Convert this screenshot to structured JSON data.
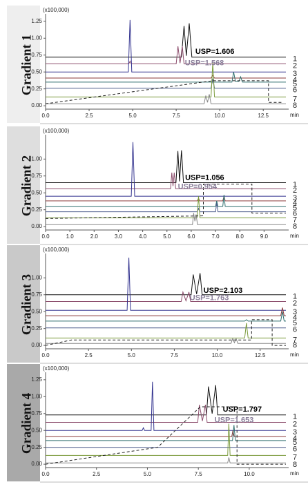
{
  "chart_data": [
    {
      "type": "line",
      "title": "Gradient 1",
      "y_label": "(x100,000)",
      "x_unit": "min",
      "xlim": [
        0,
        13.8
      ],
      "ylim": [
        -0.05,
        1.32
      ],
      "xticks": [
        {
          "value": 0,
          "label": "0.0"
        },
        2.5,
        {
          "value": 5,
          "label": "5.0"
        },
        7.5,
        {
          "value": 10,
          "label": "10.0"
        },
        12.5
      ],
      "yticks": [
        {
          "value": 0,
          "label": "0.00"
        },
        0.25,
        {
          "value": 0.5,
          "label": "0.50"
        },
        0.75,
        {
          "value": 1,
          "label": "1.00"
        },
        1.25
      ],
      "annotations": [
        "USP=1.606",
        "USP=1.568"
      ],
      "series": [
        {
          "name": "1",
          "color": "#111111",
          "x": [
            0,
            7.8,
            7.95,
            8.08,
            8.25,
            8.4,
            13.8
          ],
          "values": [
            0.72,
            0.72,
            1.18,
            0.74,
            1.22,
            0.72,
            0.72
          ]
        },
        {
          "name": "2",
          "color": "#8b4b6b",
          "x": [
            0,
            4.78,
            4.85,
            4.92,
            7.5,
            7.6,
            7.72,
            7.85,
            7.95,
            13.8
          ],
          "values": [
            0.62,
            0.62,
            0.66,
            0.62,
            0.62,
            0.88,
            0.63,
            0.88,
            0.62,
            0.62
          ]
        },
        {
          "name": "3",
          "color": "#33338f",
          "x": [
            0,
            4.75,
            4.85,
            4.95,
            13.8
          ],
          "values": [
            0.5,
            0.5,
            1.27,
            0.5,
            0.5
          ]
        },
        {
          "name": "4",
          "color": "#8b3a3a",
          "x": [
            0,
            9.5,
            9.6,
            9.7,
            13.8
          ],
          "values": [
            0.41,
            0.41,
            0.45,
            0.41,
            0.41
          ]
        },
        {
          "name": "5",
          "color": "#2e6e6e",
          "x": [
            0,
            10.7,
            10.8,
            10.9,
            11.1,
            11.2,
            11.3,
            13.8
          ],
          "values": [
            0.35,
            0.35,
            0.5,
            0.36,
            0.36,
            0.43,
            0.35,
            0.35
          ]
        },
        {
          "name": "6",
          "color": "#4a5a8a",
          "x": [
            0,
            9.5,
            9.6,
            9.7,
            13.8
          ],
          "values": [
            0.26,
            0.26,
            0.4,
            0.26,
            0.26
          ]
        },
        {
          "name": "7",
          "color": "#7a9a3a",
          "x": [
            0,
            9.5,
            9.6,
            9.7,
            13.8
          ],
          "values": [
            0.13,
            0.13,
            0.64,
            0.13,
            0.13
          ]
        },
        {
          "name": "8",
          "color": "#888888",
          "x": [
            0,
            9.1,
            9.2,
            9.3,
            9.4,
            9.5,
            13.8
          ],
          "values": [
            0.03,
            0.03,
            0.15,
            0.05,
            0.17,
            0.03,
            0.03
          ]
        }
      ],
      "gradient_profile": {
        "x": [
          0,
          9.6,
          12.8,
          12.8,
          13.6
        ],
        "values": [
          0.03,
          0.37,
          0.37,
          0.05,
          0.05
        ]
      }
    },
    {
      "type": "line",
      "title": "Gradient 2",
      "y_label": "(x100,000)",
      "x_unit": "min",
      "xlim": [
        0,
        9.9
      ],
      "ylim": [
        -0.05,
        1.32
      ],
      "xticks": [
        {
          "value": 0,
          "label": "0.0"
        },
        {
          "value": 1,
          "label": "1.0"
        },
        {
          "value": 2,
          "label": "2.0"
        },
        {
          "value": 3,
          "label": "3.0"
        },
        {
          "value": 4,
          "label": "4.0"
        },
        {
          "value": 5,
          "label": "5.0"
        },
        {
          "value": 6,
          "label": "6.0"
        },
        {
          "value": 7,
          "label": "7.0"
        },
        {
          "value": 8,
          "label": "8.0"
        },
        {
          "value": 9,
          "label": "9.0"
        }
      ],
      "yticks": [
        {
          "value": 0,
          "label": "0.00"
        },
        0.25,
        {
          "value": 0.5,
          "label": "0.50"
        },
        0.75,
        {
          "value": 1,
          "label": "1.00"
        }
      ],
      "annotations": [
        "USP=1.056",
        "USP=0.954"
      ],
      "series": [
        {
          "name": "1",
          "color": "#111111",
          "x": [
            0,
            5.37,
            5.45,
            5.52,
            5.6,
            5.68,
            9.9
          ],
          "values": [
            0.65,
            0.65,
            1.12,
            0.67,
            1.13,
            0.65,
            0.65
          ]
        },
        {
          "name": "2",
          "color": "#8b4b6b",
          "x": [
            0,
            5.15,
            5.2,
            5.25,
            5.3,
            5.36,
            9.9
          ],
          "values": [
            0.56,
            0.56,
            0.8,
            0.6,
            0.8,
            0.56,
            0.56
          ]
        },
        {
          "name": "3",
          "color": "#33338f",
          "x": [
            0,
            3.53,
            3.6,
            3.67,
            9.9
          ],
          "values": [
            0.45,
            0.45,
            1.25,
            0.45,
            0.45
          ]
        },
        {
          "name": "4",
          "color": "#8b3a3a",
          "x": [
            0,
            6.25,
            6.3,
            6.35,
            7.3,
            7.35,
            7.4,
            9.9
          ],
          "values": [
            0.38,
            0.38,
            0.42,
            0.38,
            0.38,
            0.45,
            0.38,
            0.38
          ]
        },
        {
          "name": "5",
          "color": "#2e6e6e",
          "x": [
            0,
            7.0,
            7.05,
            7.1,
            7.3,
            7.35,
            7.4,
            9.9
          ],
          "values": [
            0.3,
            0.3,
            0.38,
            0.3,
            0.3,
            0.47,
            0.3,
            0.3
          ]
        },
        {
          "name": "6",
          "color": "#4a5a8a",
          "x": [
            0,
            6.25,
            6.3,
            6.35,
            7.0,
            7.05,
            7.1,
            9.9
          ],
          "values": [
            0.22,
            0.22,
            0.27,
            0.22,
            0.22,
            0.35,
            0.22,
            0.22
          ]
        },
        {
          "name": "7",
          "color": "#7a9a3a",
          "x": [
            0,
            6.24,
            6.3,
            6.36,
            9.9
          ],
          "values": [
            0.13,
            0.13,
            0.45,
            0.13,
            0.13
          ]
        },
        {
          "name": "8",
          "color": "#888888",
          "x": [
            0,
            6.05,
            6.1,
            6.15,
            6.2,
            6.26,
            9.9
          ],
          "values": [
            0.03,
            0.03,
            0.2,
            0.08,
            0.18,
            0.03,
            0.03
          ]
        }
      ],
      "gradient_profile": {
        "x": [
          0,
          6.5,
          6.5,
          8.5,
          8.5,
          9.9
        ],
        "values": [
          0.12,
          0.16,
          0.63,
          0.63,
          0.2,
          0.2
        ]
      }
    },
    {
      "type": "line",
      "title": "Gradient 3",
      "y_label": "(x100,000)",
      "x_unit": "min",
      "xlim": [
        0,
        14
      ],
      "ylim": [
        -0.05,
        1.32
      ],
      "xticks": [
        {
          "value": 0,
          "label": "0.0"
        },
        2.5,
        {
          "value": 5,
          "label": "5.0"
        },
        7.5,
        {
          "value": 10,
          "label": "10.0"
        },
        12.5
      ],
      "yticks": [
        {
          "value": 0,
          "label": "0.00"
        },
        0.25,
        {
          "value": 0.5,
          "label": "0.50"
        },
        0.75,
        {
          "value": 1,
          "label": "1.00"
        }
      ],
      "annotations": [
        "USP=2.103",
        "USP=1.763"
      ],
      "series": [
        {
          "name": "1",
          "color": "#111111",
          "x": [
            0,
            8.48,
            8.6,
            8.8,
            9.0,
            9.12,
            14
          ],
          "values": [
            0.75,
            0.75,
            1.05,
            0.76,
            1.07,
            0.75,
            0.75
          ]
        },
        {
          "name": "2",
          "color": "#8b4b6b",
          "x": [
            0,
            7.9,
            8.0,
            8.18,
            8.35,
            8.45,
            14
          ],
          "values": [
            0.65,
            0.65,
            0.79,
            0.66,
            0.79,
            0.65,
            0.65
          ]
        },
        {
          "name": "3",
          "color": "#33338f",
          "x": [
            0,
            4.75,
            4.85,
            4.95,
            14
          ],
          "values": [
            0.52,
            0.52,
            1.3,
            0.52,
            0.52
          ]
        },
        {
          "name": "4",
          "color": "#8b3a3a",
          "x": [
            0,
            13.7,
            13.8,
            13.9,
            14
          ],
          "values": [
            0.44,
            0.44,
            0.56,
            0.44,
            0.44
          ]
        },
        {
          "name": "5",
          "color": "#2e6e6e",
          "x": [
            0,
            11.6,
            11.7,
            11.8,
            13.7,
            13.8,
            13.9,
            14
          ],
          "values": [
            0.36,
            0.36,
            0.38,
            0.36,
            0.36,
            0.5,
            0.36,
            0.36
          ]
        },
        {
          "name": "6",
          "color": "#4a5a8a",
          "x": [
            0,
            14
          ],
          "values": [
            0.26,
            0.26
          ]
        },
        {
          "name": "7",
          "color": "#7a9a3a",
          "x": [
            0,
            11.6,
            11.7,
            11.8,
            14
          ],
          "values": [
            0.11,
            0.11,
            0.33,
            0.11,
            0.11
          ]
        },
        {
          "name": "8",
          "color": "#888888",
          "x": [
            0,
            10.8,
            10.9,
            11.0,
            11.1,
            11.2,
            14
          ],
          "values": [
            0.03,
            0.03,
            0.1,
            0.04,
            0.1,
            0.03,
            0.03
          ]
        }
      ],
      "gradient_profile": {
        "x": [
          0,
          1.5,
          12,
          12,
          13.2,
          13.2,
          14
        ],
        "values": [
          0,
          0.08,
          0.08,
          0.38,
          0.38,
          0,
          0
        ]
      }
    },
    {
      "type": "line",
      "title": "Gradient 4",
      "y_label": "(x100,000)",
      "x_unit": "min",
      "xlim": [
        0,
        11.8
      ],
      "ylim": [
        -0.05,
        1.32
      ],
      "xticks": [
        {
          "value": 0,
          "label": "0.0"
        },
        2.5,
        {
          "value": 5,
          "label": "5.0"
        },
        7.5,
        {
          "value": 10,
          "label": "10.0"
        }
      ],
      "yticks": [
        {
          "value": 0,
          "label": "0.00"
        },
        0.25,
        {
          "value": 0.5,
          "label": "0.50"
        },
        0.75,
        {
          "value": 1,
          "label": "1.00"
        },
        1.25
      ],
      "annotations": [
        "USP=1.797",
        "USP=1.653"
      ],
      "series": [
        {
          "name": "1",
          "color": "#111111",
          "x": [
            0,
            7.9,
            8.0,
            8.18,
            8.35,
            8.45,
            11.8
          ],
          "values": [
            0.73,
            0.73,
            1.15,
            0.75,
            1.17,
            0.73,
            0.73
          ]
        },
        {
          "name": "2",
          "color": "#8b4b6b",
          "x": [
            0,
            7.47,
            7.55,
            7.7,
            7.85,
            7.93,
            11.8
          ],
          "values": [
            0.62,
            0.62,
            0.88,
            0.64,
            0.88,
            0.62,
            0.62
          ]
        },
        {
          "name": "3",
          "color": "#33338f",
          "x": [
            0,
            4.74,
            4.8,
            4.86,
            5.18,
            5.25,
            5.32,
            11.8
          ],
          "values": [
            0.5,
            0.5,
            0.54,
            0.5,
            0.5,
            1.22,
            0.5,
            0.5
          ]
        },
        {
          "name": "4",
          "color": "#8b3a3a",
          "x": [
            0,
            9.14,
            9.2,
            9.26,
            11.8
          ],
          "values": [
            0.41,
            0.41,
            0.5,
            0.41,
            0.41
          ]
        },
        {
          "name": "5",
          "color": "#2e6e6e",
          "x": [
            0,
            9.18,
            9.25,
            9.32,
            11.8
          ],
          "values": [
            0.35,
            0.35,
            0.58,
            0.35,
            0.35
          ]
        },
        {
          "name": "6",
          "color": "#4a5a8a",
          "x": [
            0,
            11.8
          ],
          "values": [
            0.25,
            0.25
          ]
        },
        {
          "name": "7",
          "color": "#7a9a3a",
          "x": [
            0,
            8.94,
            9.0,
            9.06,
            11.8
          ],
          "values": [
            0.13,
            0.13,
            0.6,
            0.13,
            0.13
          ]
        },
        {
          "name": "8",
          "color": "#888888",
          "x": [
            0,
            8.94,
            9.0,
            9.06,
            11.8
          ],
          "values": [
            0.02,
            0.02,
            0.1,
            0.02,
            0.02
          ]
        }
      ],
      "gradient_profile": {
        "x": [
          0,
          5.5,
          7.6,
          9.4,
          9.4,
          11.8
        ],
        "values": [
          0,
          0.25,
          0.85,
          0.85,
          0,
          0
        ]
      }
    }
  ]
}
